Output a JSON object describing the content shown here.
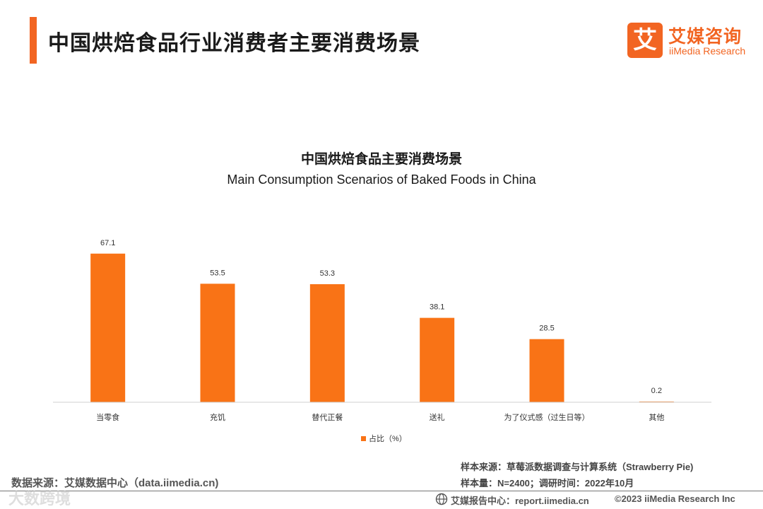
{
  "header": {
    "title": "中国烘焙食品行业消费者主要消费场景",
    "accent_color": "#f26522"
  },
  "logo": {
    "mark": "艾",
    "name_cn": "艾媒咨询",
    "name_en": "iiMedia Research"
  },
  "chart_data": {
    "type": "bar",
    "title": "中国烘焙食品主要消费场景",
    "subtitle": "Main Consumption Scenarios of Baked Foods in China",
    "categories": [
      "当零食",
      "充饥",
      "替代正餐",
      "送礼",
      "为了仪式感（过生日等）",
      "其他"
    ],
    "series": [
      {
        "name": "占比（%）",
        "values": [
          67.1,
          53.5,
          53.3,
          38.1,
          28.5,
          0.2
        ],
        "color": "#f97316"
      }
    ],
    "ylim": [
      0,
      75
    ],
    "grid": false,
    "legend": "bottom-center",
    "data_labels": true
  },
  "footer": {
    "source_left": "数据来源：艾媒数据中心（data.iimedia.cn)",
    "sample_source": "样本来源：草莓派数据调查与计算系统（Strawberry Pie)",
    "sample_size": "样本量：N=2400；调研时间：2022年10月",
    "report_center": "艾媒报告中心：report.iimedia.cn",
    "copyright": "©2023 iiMedia Research  Inc",
    "watermark": "大数跨境"
  }
}
